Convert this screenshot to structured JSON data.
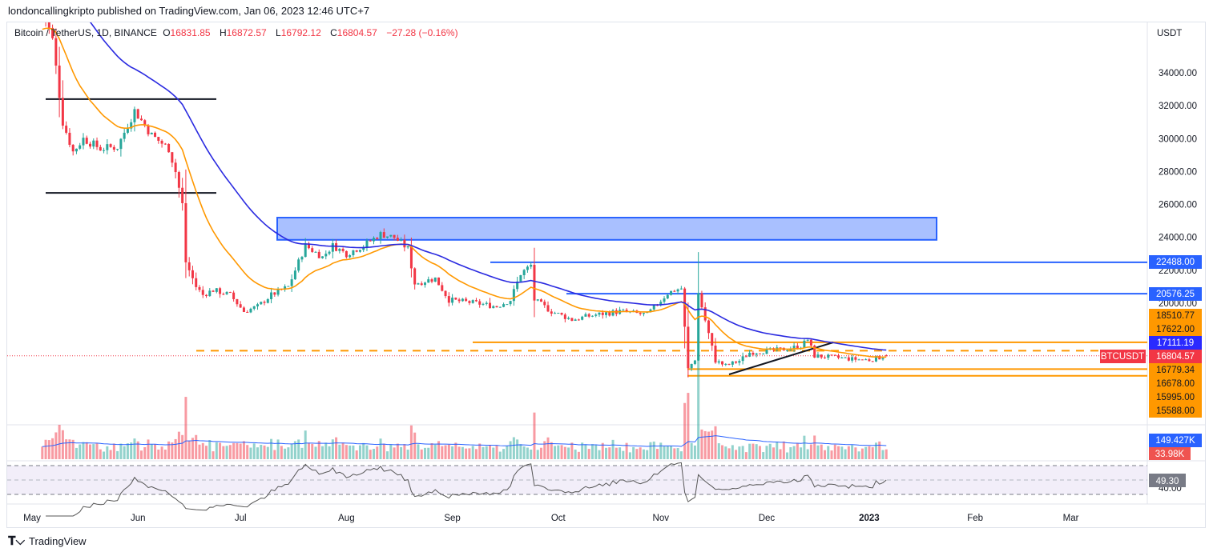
{
  "header": {
    "published": "londoncallingkripto published on TradingView.com, Jan 06, 2023 12:46 UTC+7"
  },
  "legend": {
    "symbol": "Bitcoin / TetherUS, 1D, BINANCE",
    "o_label": "O",
    "o": "16831.85",
    "h_label": "H",
    "h": "16872.57",
    "l_label": "L",
    "l": "16792.12",
    "c_label": "C",
    "c": "16804.57",
    "change": "−27.28 (−0.16%)"
  },
  "axis": {
    "currency": "USDT",
    "price_ticks": [
      "34000.00",
      "32000.00",
      "30000.00",
      "28000.00",
      "26000.00",
      "24000.00",
      "22000.00",
      "20000.00"
    ],
    "time_ticks": [
      "May",
      "Jun",
      "Jul",
      "Aug",
      "Sep",
      "Oct",
      "Nov",
      "Dec",
      "2023",
      "Feb",
      "Mar"
    ]
  },
  "price_tags": [
    {
      "value": "22488.00",
      "color": "#2962ff",
      "text_color": "#ffffff"
    },
    {
      "value": "20576.25",
      "color": "#2962ff",
      "text_color": "#ffffff"
    },
    {
      "value": "18510.77",
      "color": "#ff9800",
      "text_color": "#131722"
    },
    {
      "value": "17622.00",
      "color": "#ff9800",
      "text_color": "#131722"
    },
    {
      "value": "17111.19",
      "color": "#2a2aff",
      "text_color": "#ffffff"
    },
    {
      "value": "16804.57",
      "color": "#f23645",
      "text_color": "#ffffff"
    },
    {
      "value": "16779.34",
      "color": "#ff9800",
      "text_color": "#131722"
    },
    {
      "value": "16678.00",
      "color": "#ff9800",
      "text_color": "#131722"
    },
    {
      "value": "15995.00",
      "color": "#ff9800",
      "text_color": "#131722"
    },
    {
      "value": "15588.00",
      "color": "#ff9800",
      "text_color": "#131722"
    }
  ],
  "symbol_tag": "BTCUSDT",
  "volume": {
    "ma": "149.427K",
    "value": "33.98K"
  },
  "rsi": {
    "value": "49.30",
    "tick": "40.00"
  },
  "footer": {
    "brand": "TradingView"
  },
  "colors": {
    "up": "#26a69a",
    "down": "#f23645",
    "ema_fast": "#ff9800",
    "ema_slow": "#2a2ae0",
    "zone": "#2962ff"
  },
  "chart_data": {
    "type": "candlestick",
    "title": "Bitcoin / TetherUS, 1D, BINANCE",
    "x_unit": "days since May 1 2022",
    "ylim": [
      14500,
      36500
    ],
    "price_path": [
      [
        3,
        38000
      ],
      [
        6,
        36000
      ],
      [
        9,
        31000
      ],
      [
        12,
        29200
      ],
      [
        15,
        30000
      ],
      [
        20,
        29400
      ],
      [
        25,
        29500
      ],
      [
        30,
        31700
      ],
      [
        35,
        30200
      ],
      [
        40,
        29400
      ],
      [
        42,
        28000
      ],
      [
        44,
        26000
      ],
      [
        45,
        22500
      ],
      [
        48,
        21000
      ],
      [
        50,
        20500
      ],
      [
        53,
        20800
      ],
      [
        58,
        20500
      ],
      [
        62,
        19500
      ],
      [
        66,
        19800
      ],
      [
        70,
        20500
      ],
      [
        75,
        21000
      ],
      [
        80,
        23500
      ],
      [
        85,
        22800
      ],
      [
        88,
        23500
      ],
      [
        92,
        23000
      ],
      [
        97,
        23500
      ],
      [
        102,
        24200
      ],
      [
        106,
        24000
      ],
      [
        110,
        23300
      ],
      [
        112,
        21200
      ],
      [
        118,
        21500
      ],
      [
        122,
        20200
      ],
      [
        130,
        20000
      ],
      [
        136,
        19800
      ],
      [
        140,
        20200
      ],
      [
        143,
        21800
      ],
      [
        146,
        22300
      ],
      [
        147,
        20200
      ],
      [
        152,
        19500
      ],
      [
        158,
        19000
      ],
      [
        165,
        19300
      ],
      [
        172,
        19500
      ],
      [
        180,
        19300
      ],
      [
        186,
        20600
      ],
      [
        195,
        20600
      ],
      [
        188,
        20800
      ],
      [
        190,
        20900
      ],
      [
        191,
        18500
      ],
      [
        192,
        16000
      ],
      [
        194,
        16600
      ],
      [
        200,
        16500
      ],
      [
        203,
        16200
      ],
      [
        207,
        16500
      ],
      [
        210,
        17000
      ],
      [
        215,
        17100
      ],
      [
        220,
        17200
      ],
      [
        225,
        17400
      ],
      [
        227,
        17800
      ],
      [
        229,
        16800
      ],
      [
        235,
        16700
      ],
      [
        240,
        16600
      ],
      [
        245,
        16550
      ],
      [
        250,
        16804.57
      ]
    ],
    "levels": {
      "range_high": 32400,
      "range_low": 26700,
      "supply_zone": [
        23850,
        25200
      ],
      "resistance": [
        22488,
        20576.25
      ],
      "support": [
        17622,
        17111.19,
        15995,
        15588
      ]
    },
    "indicators": [
      "EMA 20",
      "EMA 50",
      "Volume",
      "RSI 14"
    ]
  }
}
